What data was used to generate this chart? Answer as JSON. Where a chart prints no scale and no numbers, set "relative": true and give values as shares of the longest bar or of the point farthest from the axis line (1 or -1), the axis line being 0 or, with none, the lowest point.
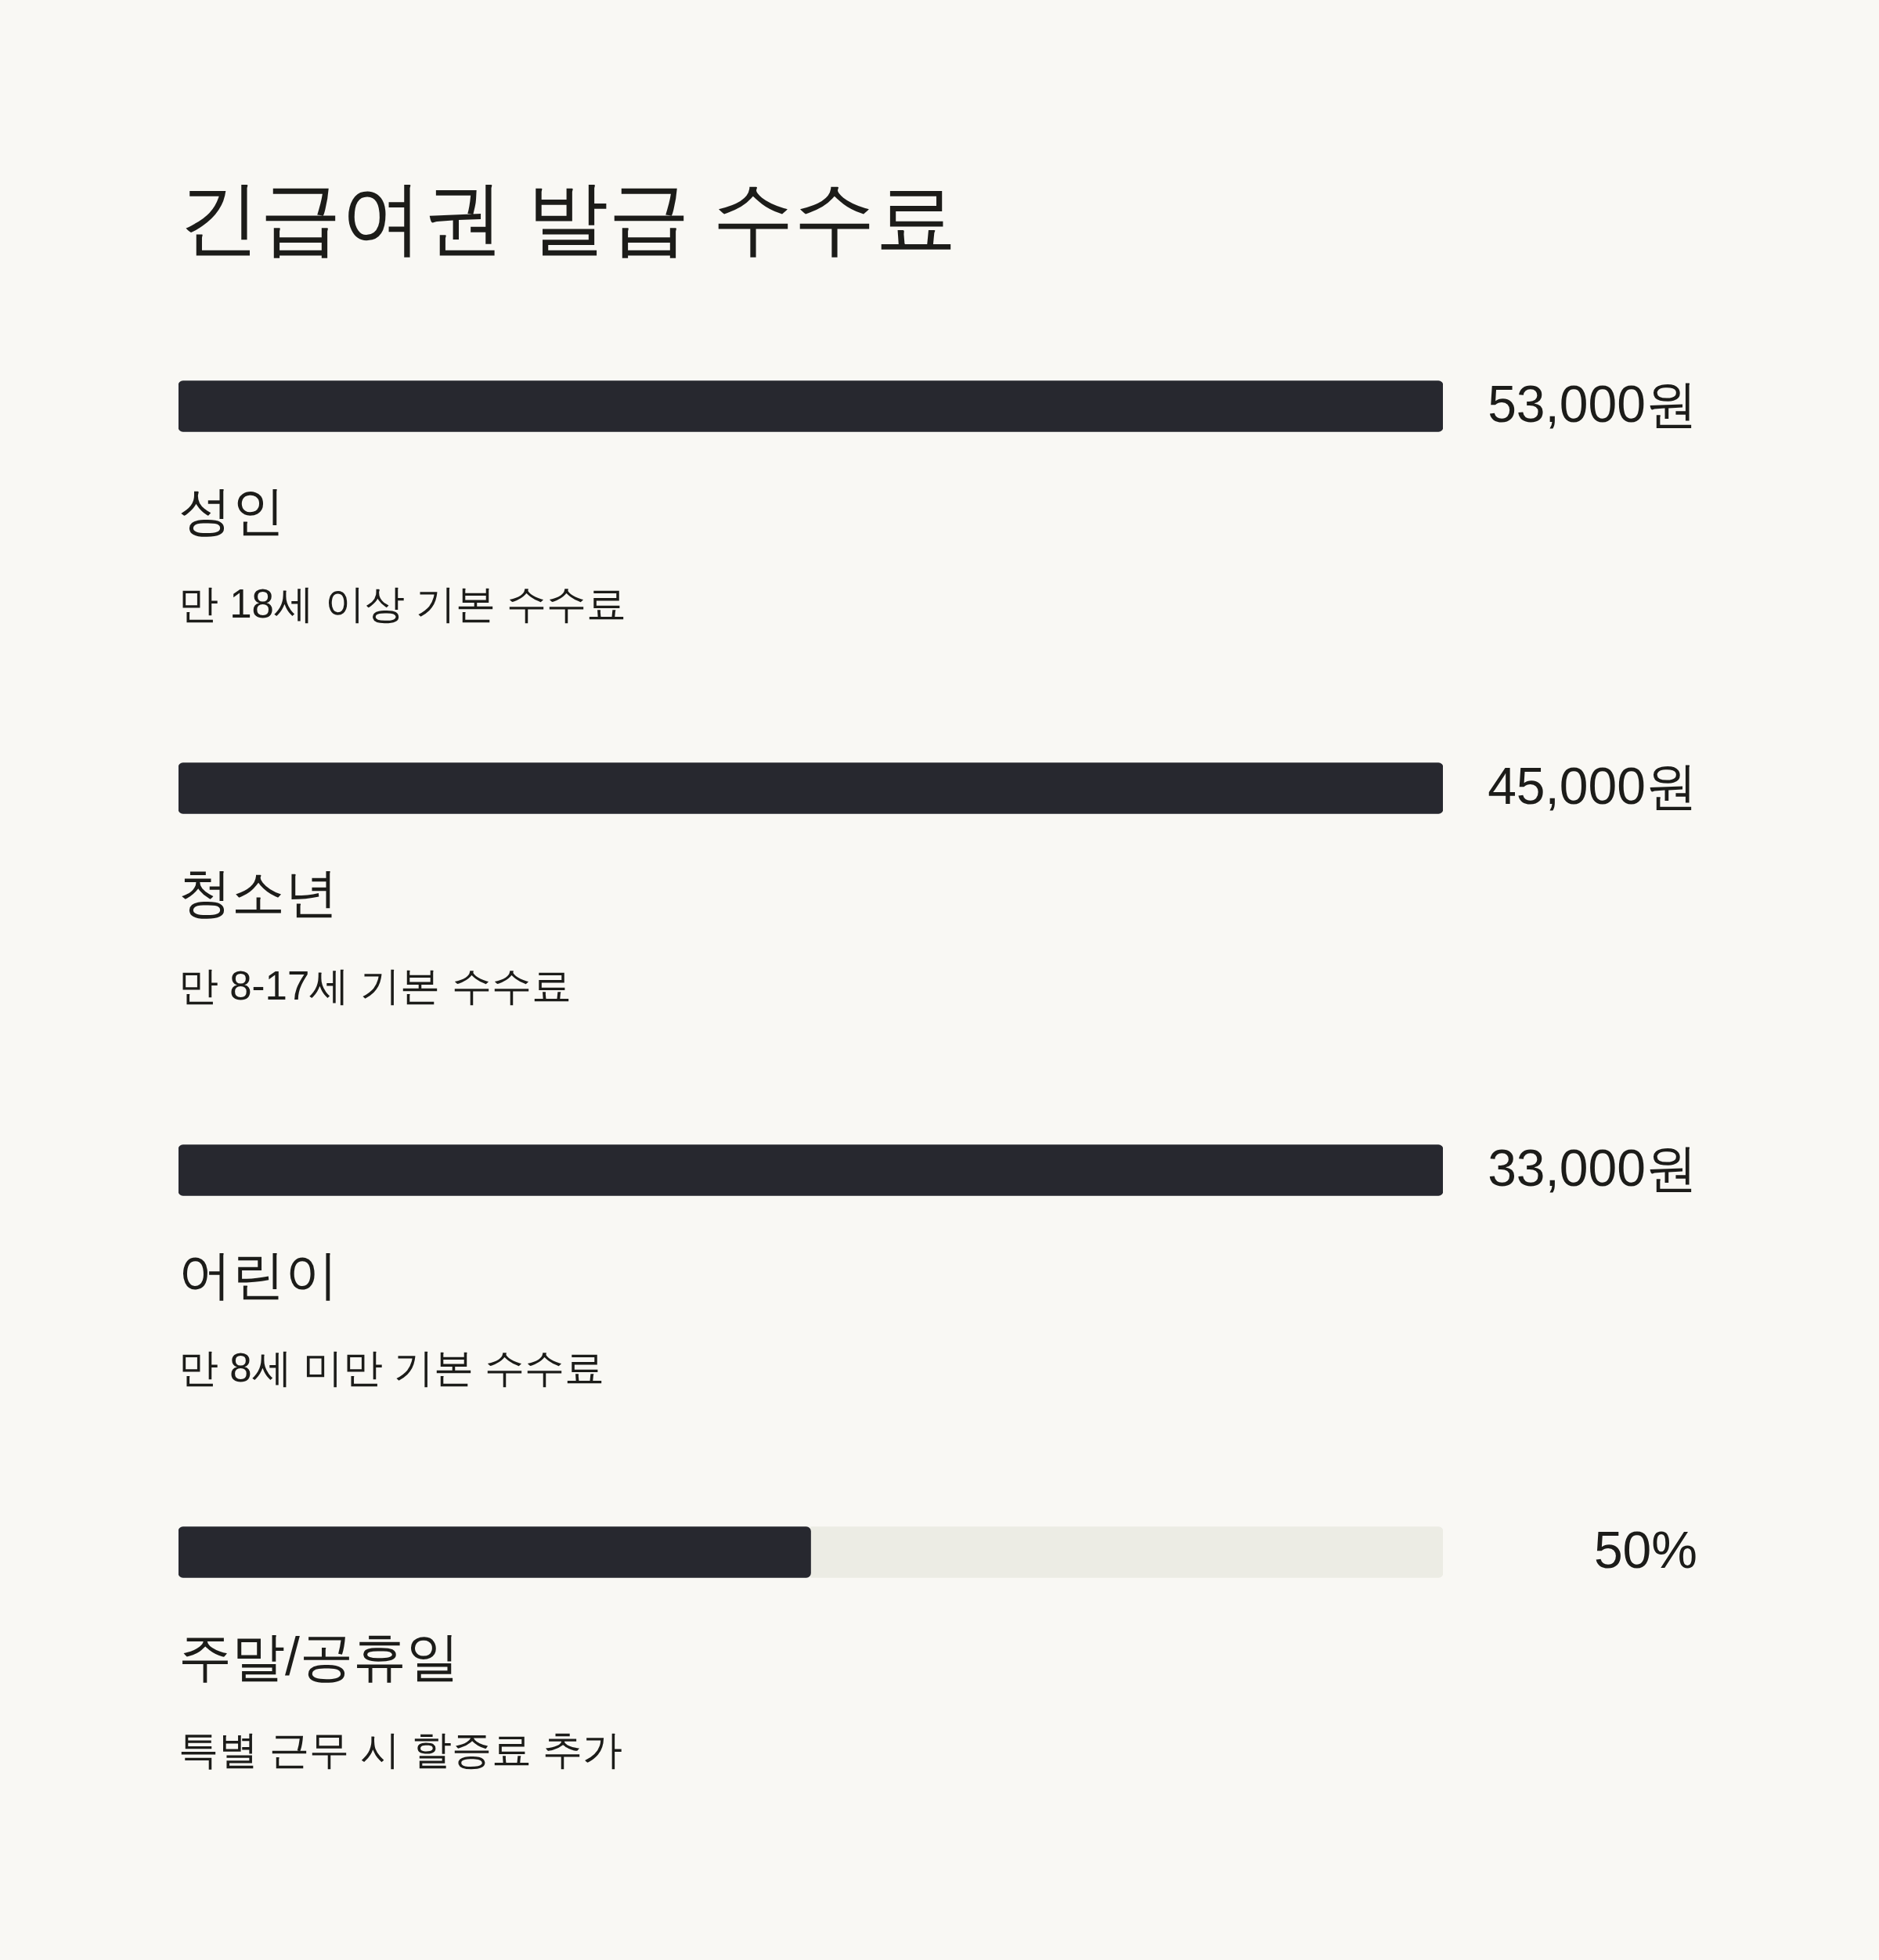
{
  "chart_data": {
    "type": "bar",
    "title": "긴급여권 발급 수수료",
    "orientation": "horizontal",
    "stacked": true,
    "relative": true,
    "categories": [
      "성인",
      "청소년",
      "어린이",
      "주말/공휴일"
    ],
    "series": [
      {
        "color": "#27282f",
        "values": [
          1,
          1,
          1,
          0.5
        ]
      },
      {
        "color": "#ecece4",
        "values": [
          0,
          0,
          0,
          0.5
        ]
      }
    ],
    "annotations": [
      "53,000원",
      "만 18세 이상 기본 수수료",
      "45,000원",
      "만 8-17세 기본 수수료",
      "33,000원",
      "만 8세 미만 기본 수수료",
      "50%",
      "특별 근무 시 할증료 추가"
    ]
  }
}
